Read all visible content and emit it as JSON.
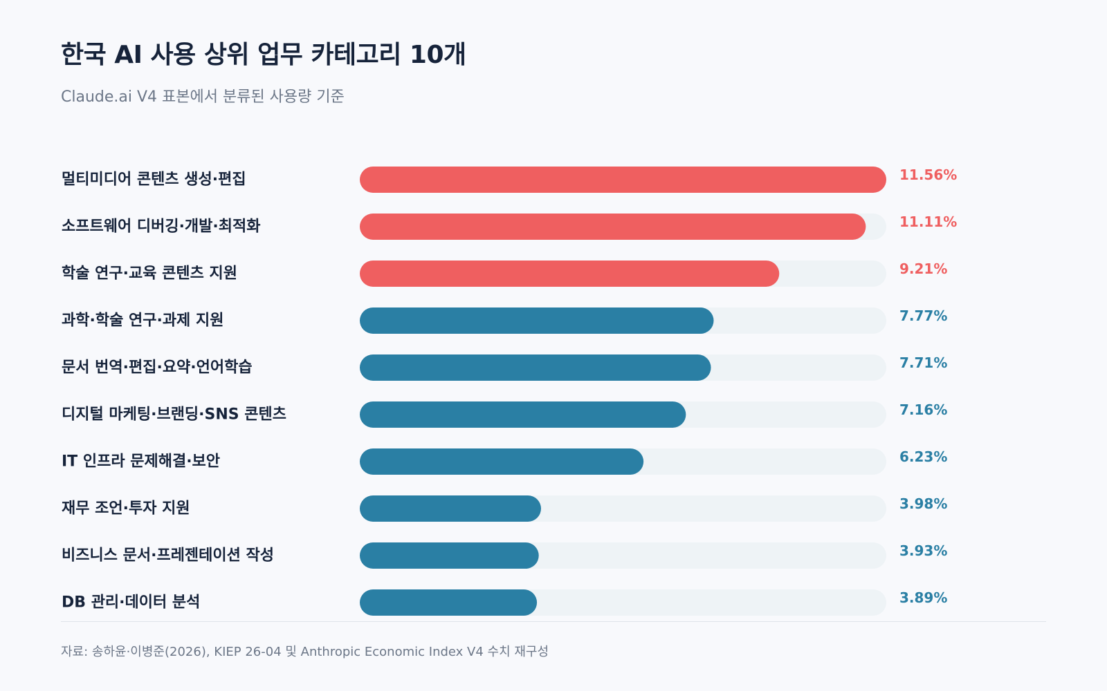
{
  "header": {
    "title": "한국 AI 사용 상위 업무 카테고리 10개",
    "subtitle": "Claude.ai V4 표본에서 분류된 사용량 기준"
  },
  "footer": {
    "source": "자료: 송하윤·이병준(2026), KIEP 26-04 및 Anthropic Economic Index V4 수치 재구성"
  },
  "colors": {
    "highlight": "#ef5f60",
    "base": "#2a7fa4",
    "track": "#eef3f6"
  },
  "chart_data": {
    "type": "bar",
    "orientation": "horizontal",
    "title": "한국 AI 사용 상위 업무 카테고리 10개",
    "subtitle": "Claude.ai V4 표본에서 분류된 사용량 기준",
    "xlim": [
      0,
      11.56
    ],
    "grid": false,
    "categories": [
      "멀티미디어 콘텐츠 생성·편집",
      "소프트웨어 디버깅·개발·최적화",
      "학술 연구·교육 콘텐츠 지원",
      "과학·학술 연구·과제 지원",
      "문서 번역·편집·요약·언어학습",
      "디지털 마케팅·브랜딩·SNS 콘텐츠",
      "IT 인프라 문제해결·보안",
      "재무 조언·투자 지원",
      "비즈니스 문서·프레젠테이션 작성",
      "DB 관리·데이터 분석"
    ],
    "values": [
      11.56,
      11.11,
      9.21,
      7.77,
      7.71,
      7.16,
      6.23,
      3.98,
      3.93,
      3.89
    ],
    "value_labels": [
      "11.56%",
      "11.11%",
      "9.21%",
      "7.77%",
      "7.71%",
      "7.16%",
      "6.23%",
      "3.98%",
      "3.93%",
      "3.89%"
    ],
    "highlight_top_n": 3
  }
}
